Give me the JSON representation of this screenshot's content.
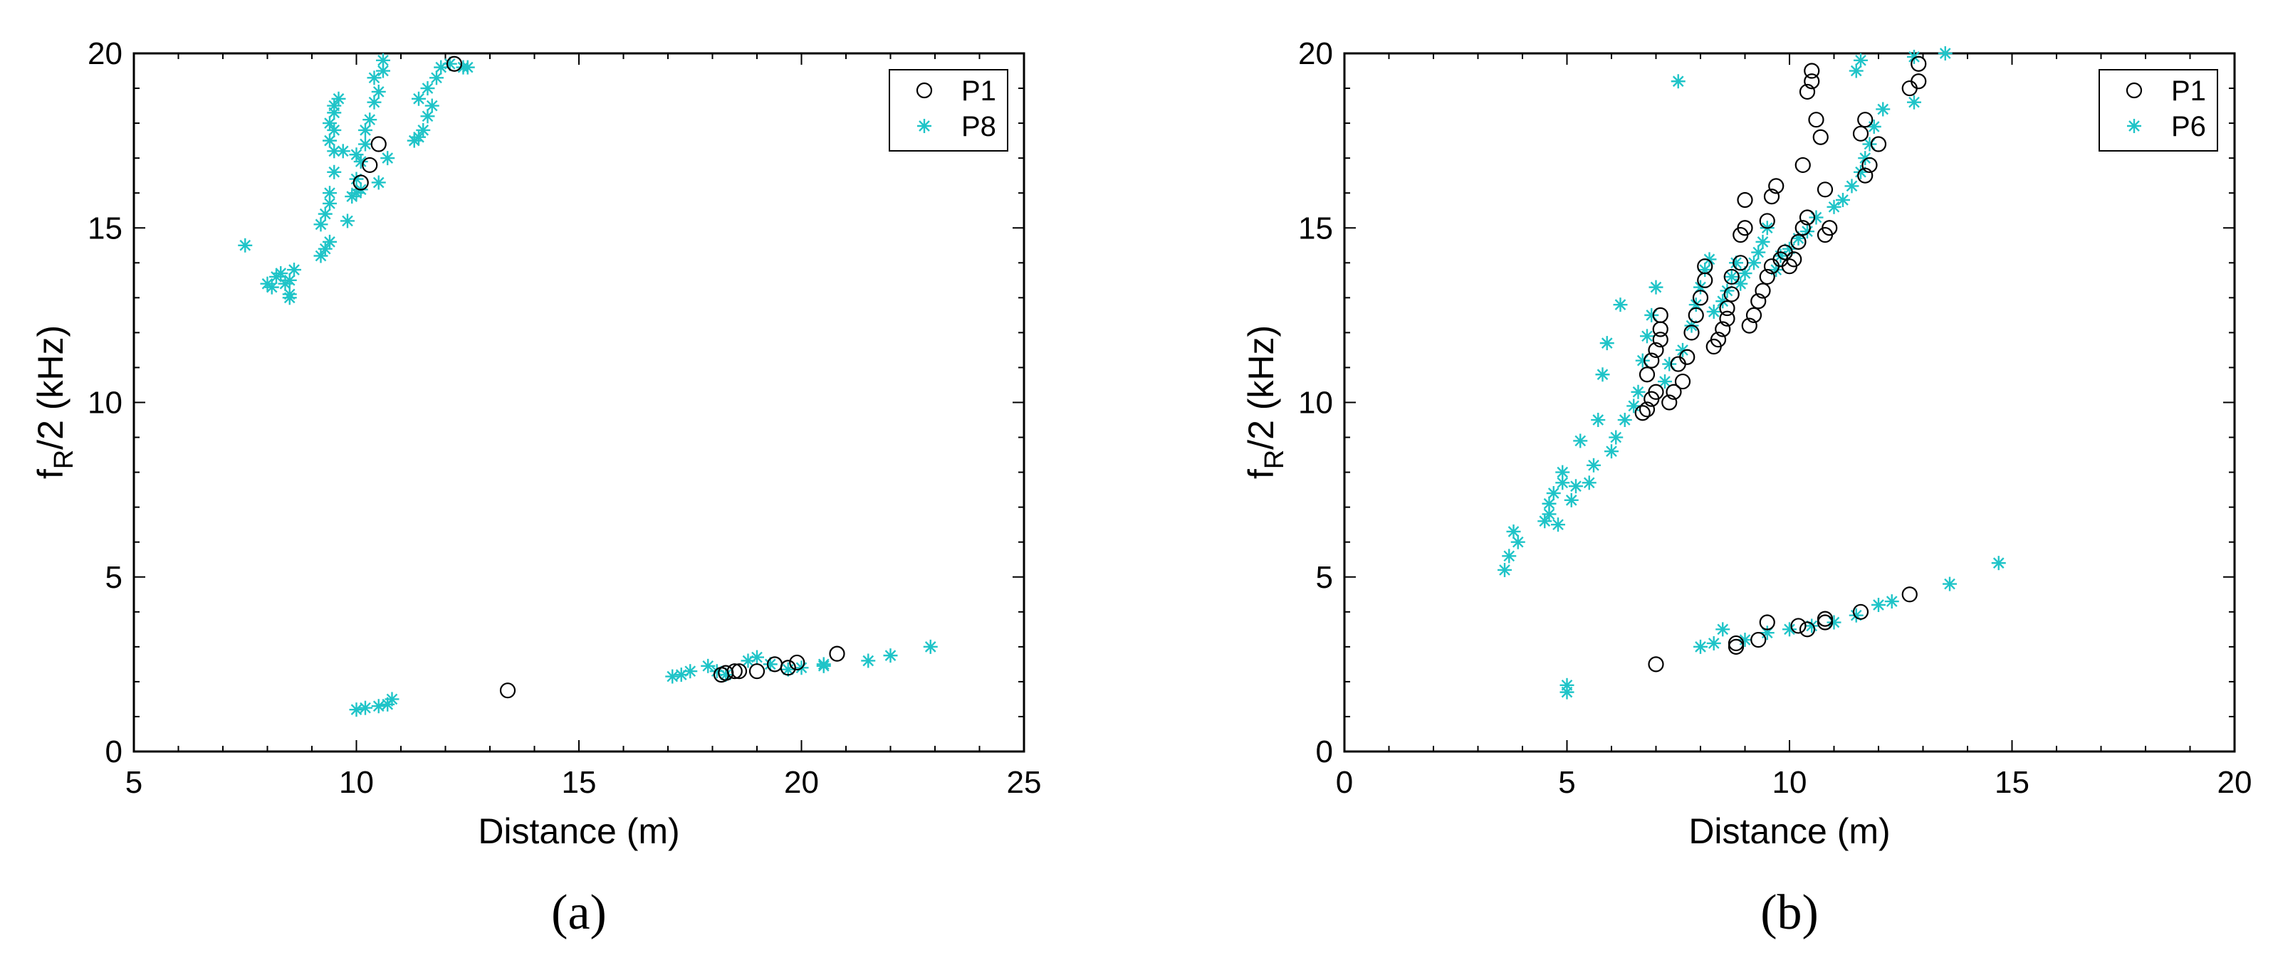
{
  "chart_data": [
    {
      "type": "scatter",
      "panel_label": "(a)",
      "xlabel": "Distance (m)",
      "ylabel": "f_R/2 (kHz)",
      "xlim": [
        5,
        25
      ],
      "ylim": [
        0,
        20
      ],
      "xticks": [
        5,
        10,
        15,
        20,
        25
      ],
      "yticks": [
        0,
        5,
        10,
        15,
        20
      ],
      "legend": "top-right",
      "grid": false,
      "series": [
        {
          "name": "P1",
          "marker": "circle",
          "color": "#000000",
          "points": [
            [
              10.1,
              16.3
            ],
            [
              10.3,
              16.8
            ],
            [
              10.5,
              17.4
            ],
            [
              12.2,
              19.7
            ],
            [
              13.4,
              1.75
            ],
            [
              18.2,
              2.2
            ],
            [
              18.3,
              2.25
            ],
            [
              18.5,
              2.3
            ],
            [
              18.6,
              2.3
            ],
            [
              19.0,
              2.3
            ],
            [
              19.4,
              2.5
            ],
            [
              19.7,
              2.4
            ],
            [
              19.9,
              2.55
            ],
            [
              20.8,
              2.8
            ]
          ]
        },
        {
          "name": "P8",
          "marker": "asterisk",
          "color": "#1fc4c8",
          "points": [
            [
              7.5,
              14.5
            ],
            [
              8.0,
              13.4
            ],
            [
              8.1,
              13.3
            ],
            [
              8.2,
              13.6
            ],
            [
              8.3,
              13.7
            ],
            [
              8.4,
              13.4
            ],
            [
              8.5,
              13.1
            ],
            [
              8.5,
              13.0
            ],
            [
              8.6,
              13.8
            ],
            [
              8.5,
              13.5
            ],
            [
              9.2,
              14.2
            ],
            [
              9.3,
              14.4
            ],
            [
              9.4,
              14.6
            ],
            [
              9.2,
              15.1
            ],
            [
              9.3,
              15.4
            ],
            [
              9.4,
              15.7
            ],
            [
              9.4,
              16.0
            ],
            [
              9.5,
              16.6
            ],
            [
              9.5,
              17.2
            ],
            [
              9.4,
              17.5
            ],
            [
              9.5,
              17.8
            ],
            [
              9.4,
              18.0
            ],
            [
              9.5,
              18.3
            ],
            [
              9.5,
              18.5
            ],
            [
              9.6,
              18.7
            ],
            [
              9.7,
              17.2
            ],
            [
              9.8,
              15.2
            ],
            [
              9.9,
              15.9
            ],
            [
              10.0,
              16.0
            ],
            [
              10.1,
              16.1
            ],
            [
              10.0,
              16.4
            ],
            [
              10.1,
              16.9
            ],
            [
              10.0,
              17.1
            ],
            [
              10.2,
              17.4
            ],
            [
              10.2,
              17.8
            ],
            [
              10.3,
              18.1
            ],
            [
              10.4,
              18.6
            ],
            [
              10.5,
              18.9
            ],
            [
              10.4,
              19.3
            ],
            [
              10.6,
              19.5
            ],
            [
              10.6,
              19.8
            ],
            [
              10.7,
              17.0
            ],
            [
              10.5,
              16.3
            ],
            [
              11.3,
              17.5
            ],
            [
              11.4,
              17.6
            ],
            [
              11.5,
              17.8
            ],
            [
              11.6,
              18.2
            ],
            [
              11.7,
              18.5
            ],
            [
              11.4,
              18.7
            ],
            [
              11.6,
              19.0
            ],
            [
              11.8,
              19.3
            ],
            [
              11.9,
              19.6
            ],
            [
              12.1,
              19.7
            ],
            [
              12.4,
              19.6
            ],
            [
              12.5,
              19.6
            ],
            [
              10.0,
              1.2
            ],
            [
              10.2,
              1.25
            ],
            [
              10.5,
              1.3
            ],
            [
              10.7,
              1.35
            ],
            [
              10.8,
              1.5
            ],
            [
              17.1,
              2.15
            ],
            [
              17.3,
              2.2
            ],
            [
              17.5,
              2.3
            ],
            [
              17.9,
              2.45
            ],
            [
              18.1,
              2.3
            ],
            [
              18.3,
              2.2
            ],
            [
              18.8,
              2.6
            ],
            [
              19.0,
              2.7
            ],
            [
              19.3,
              2.5
            ],
            [
              19.7,
              2.35
            ],
            [
              20.0,
              2.4
            ],
            [
              20.5,
              2.5
            ],
            [
              20.5,
              2.45
            ],
            [
              21.5,
              2.6
            ],
            [
              22.0,
              2.75
            ],
            [
              22.9,
              3.0
            ]
          ]
        }
      ]
    },
    {
      "type": "scatter",
      "panel_label": "(b)",
      "xlabel": "Distance (m)",
      "ylabel": "f_R/2 (kHz)",
      "xlim": [
        0,
        20
      ],
      "ylim": [
        0,
        20
      ],
      "xticks": [
        0,
        5,
        10,
        15,
        20
      ],
      "yticks": [
        0,
        5,
        10,
        15,
        20
      ],
      "legend": "top-right",
      "grid": false,
      "series": [
        {
          "name": "P1",
          "marker": "circle",
          "color": "#000000",
          "points": [
            [
              6.7,
              9.7
            ],
            [
              6.8,
              9.8
            ],
            [
              6.9,
              10.1
            ],
            [
              7.0,
              10.3
            ],
            [
              6.8,
              10.8
            ],
            [
              6.9,
              11.2
            ],
            [
              7.0,
              11.5
            ],
            [
              7.1,
              11.8
            ],
            [
              7.1,
              12.1
            ],
            [
              7.1,
              12.5
            ],
            [
              7.3,
              10.0
            ],
            [
              7.4,
              10.3
            ],
            [
              7.6,
              10.6
            ],
            [
              7.5,
              11.1
            ],
            [
              7.7,
              11.3
            ],
            [
              7.8,
              12.0
            ],
            [
              7.9,
              12.5
            ],
            [
              8.0,
              13.0
            ],
            [
              8.1,
              13.5
            ],
            [
              8.1,
              13.9
            ],
            [
              8.3,
              11.6
            ],
            [
              8.4,
              11.8
            ],
            [
              8.5,
              12.1
            ],
            [
              8.6,
              12.4
            ],
            [
              8.6,
              12.7
            ],
            [
              8.7,
              13.1
            ],
            [
              8.7,
              13.6
            ],
            [
              8.9,
              14.0
            ],
            [
              8.9,
              14.8
            ],
            [
              9.0,
              15.0
            ],
            [
              9.0,
              15.8
            ],
            [
              9.1,
              12.2
            ],
            [
              9.2,
              12.5
            ],
            [
              9.3,
              12.9
            ],
            [
              9.4,
              13.2
            ],
            [
              9.5,
              13.6
            ],
            [
              9.6,
              13.9
            ],
            [
              9.5,
              15.2
            ],
            [
              9.6,
              15.9
            ],
            [
              9.7,
              16.2
            ],
            [
              9.8,
              14.1
            ],
            [
              9.9,
              14.3
            ],
            [
              10.0,
              13.9
            ],
            [
              10.1,
              14.1
            ],
            [
              10.2,
              14.6
            ],
            [
              10.3,
              15.0
            ],
            [
              10.4,
              15.3
            ],
            [
              10.3,
              16.8
            ],
            [
              10.4,
              18.9
            ],
            [
              10.5,
              19.2
            ],
            [
              10.5,
              19.5
            ],
            [
              10.6,
              18.1
            ],
            [
              10.7,
              17.6
            ],
            [
              10.8,
              14.8
            ],
            [
              10.9,
              15.0
            ],
            [
              10.8,
              16.1
            ],
            [
              11.6,
              17.7
            ],
            [
              11.7,
              18.1
            ],
            [
              11.8,
              16.8
            ],
            [
              11.7,
              16.5
            ],
            [
              12.0,
              17.4
            ],
            [
              12.7,
              19.0
            ],
            [
              12.9,
              19.7
            ],
            [
              12.9,
              19.2
            ],
            [
              7.0,
              2.5
            ],
            [
              8.8,
              3.0
            ],
            [
              8.8,
              3.1
            ],
            [
              9.3,
              3.2
            ],
            [
              9.5,
              3.7
            ],
            [
              10.2,
              3.6
            ],
            [
              10.4,
              3.5
            ],
            [
              10.8,
              3.7
            ],
            [
              10.8,
              3.8
            ],
            [
              11.6,
              4.0
            ],
            [
              12.7,
              4.5
            ]
          ]
        },
        {
          "name": "P6",
          "marker": "asterisk",
          "color": "#1fc4c8",
          "points": [
            [
              3.6,
              5.2
            ],
            [
              3.7,
              5.6
            ],
            [
              3.8,
              6.3
            ],
            [
              3.9,
              6.0
            ],
            [
              4.5,
              6.6
            ],
            [
              4.6,
              6.8
            ],
            [
              4.6,
              7.1
            ],
            [
              4.7,
              7.4
            ],
            [
              4.8,
              6.5
            ],
            [
              4.9,
              7.7
            ],
            [
              4.9,
              8.0
            ],
            [
              5.1,
              7.2
            ],
            [
              5.2,
              7.6
            ],
            [
              5.3,
              8.9
            ],
            [
              5.5,
              7.7
            ],
            [
              5.6,
              8.2
            ],
            [
              5.7,
              9.5
            ],
            [
              5.8,
              10.8
            ],
            [
              5.9,
              11.7
            ],
            [
              6.0,
              8.6
            ],
            [
              6.1,
              9.0
            ],
            [
              6.2,
              12.8
            ],
            [
              6.3,
              9.5
            ],
            [
              6.5,
              9.9
            ],
            [
              6.6,
              10.3
            ],
            [
              6.7,
              11.2
            ],
            [
              6.8,
              11.9
            ],
            [
              6.9,
              12.5
            ],
            [
              7.0,
              13.3
            ],
            [
              7.2,
              10.6
            ],
            [
              7.3,
              11.1
            ],
            [
              7.5,
              19.2
            ],
            [
              7.6,
              11.5
            ],
            [
              7.8,
              12.2
            ],
            [
              7.9,
              12.8
            ],
            [
              8.0,
              13.3
            ],
            [
              8.1,
              13.8
            ],
            [
              8.2,
              14.1
            ],
            [
              8.3,
              12.6
            ],
            [
              8.5,
              12.9
            ],
            [
              8.6,
              13.2
            ],
            [
              8.7,
              13.6
            ],
            [
              8.8,
              14.0
            ],
            [
              8.9,
              13.4
            ],
            [
              9.0,
              13.7
            ],
            [
              9.2,
              14.0
            ],
            [
              9.3,
              14.3
            ],
            [
              9.4,
              14.6
            ],
            [
              9.5,
              15.0
            ],
            [
              9.7,
              13.8
            ],
            [
              9.8,
              14.2
            ],
            [
              10.0,
              14.4
            ],
            [
              10.2,
              14.7
            ],
            [
              10.4,
              14.9
            ],
            [
              10.6,
              15.3
            ],
            [
              11.0,
              15.6
            ],
            [
              11.2,
              15.8
            ],
            [
              11.4,
              16.2
            ],
            [
              11.6,
              16.6
            ],
            [
              11.7,
              17.0
            ],
            [
              11.8,
              17.4
            ],
            [
              11.9,
              17.9
            ],
            [
              12.1,
              18.4
            ],
            [
              11.5,
              19.5
            ],
            [
              11.6,
              19.8
            ],
            [
              12.8,
              18.6
            ],
            [
              12.8,
              19.9
            ],
            [
              13.5,
              20.0
            ],
            [
              5.0,
              1.7
            ],
            [
              5.0,
              1.9
            ],
            [
              8.0,
              3.0
            ],
            [
              8.3,
              3.1
            ],
            [
              8.5,
              3.5
            ],
            [
              9.0,
              3.2
            ],
            [
              9.5,
              3.4
            ],
            [
              10.0,
              3.5
            ],
            [
              10.5,
              3.6
            ],
            [
              11.0,
              3.7
            ],
            [
              11.5,
              3.9
            ],
            [
              12.0,
              4.2
            ],
            [
              12.3,
              4.3
            ],
            [
              13.6,
              4.8
            ],
            [
              14.7,
              5.4
            ]
          ]
        }
      ]
    }
  ]
}
